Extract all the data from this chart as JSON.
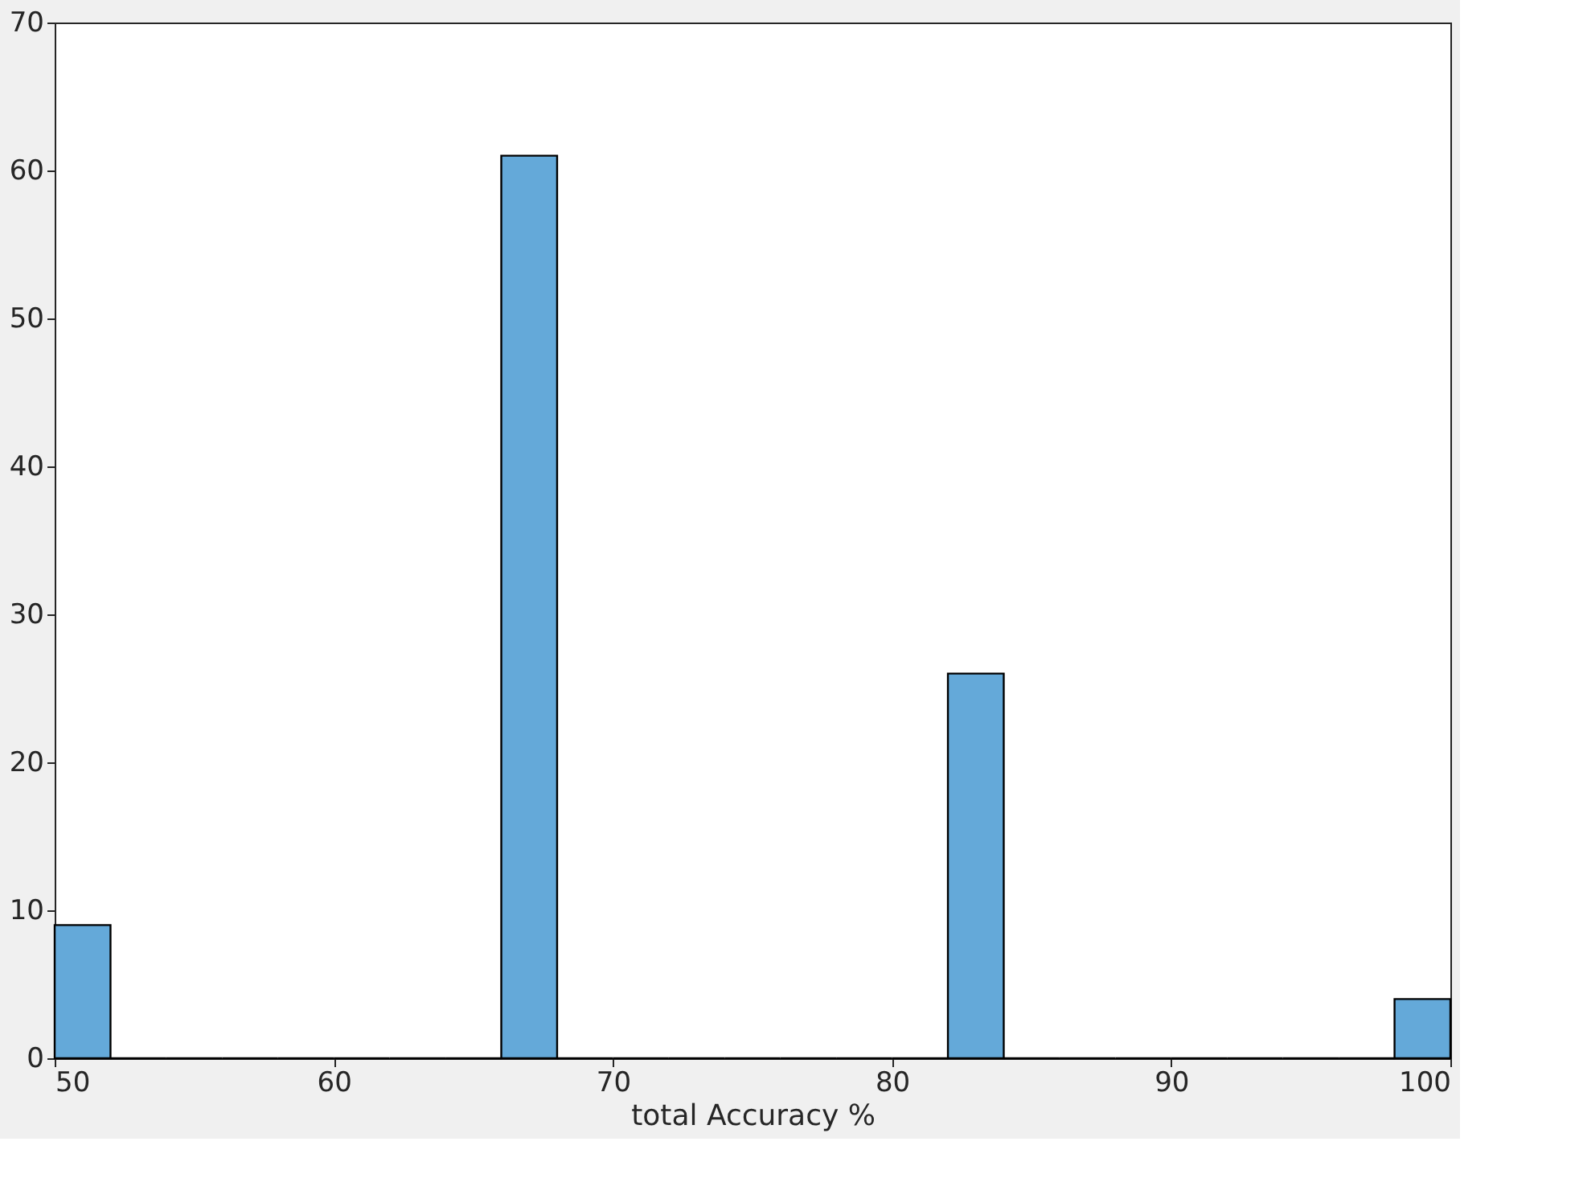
{
  "chart_data": {
    "type": "histogram",
    "xlabel": "total Accuracy %",
    "bins": [
      50,
      52,
      54,
      56,
      58,
      60,
      62,
      64,
      66,
      68,
      70,
      72,
      74,
      76,
      78,
      80,
      82,
      84,
      86,
      88,
      90,
      92,
      94,
      96,
      98,
      100
    ],
    "values": [
      9,
      0,
      0,
      0,
      0,
      0,
      0,
      0,
      61,
      0,
      0,
      0,
      0,
      0,
      0,
      0,
      26,
      0,
      0,
      0,
      0,
      0,
      0,
      0,
      4
    ],
    "color": "#64a9d9",
    "xlim": [
      50,
      100
    ],
    "xticks": [
      50,
      60,
      70,
      80,
      90,
      100
    ],
    "ylim": [
      0,
      70
    ],
    "yticks": [
      0,
      10,
      20,
      30,
      40,
      50,
      60,
      70
    ],
    "grid": false
  }
}
